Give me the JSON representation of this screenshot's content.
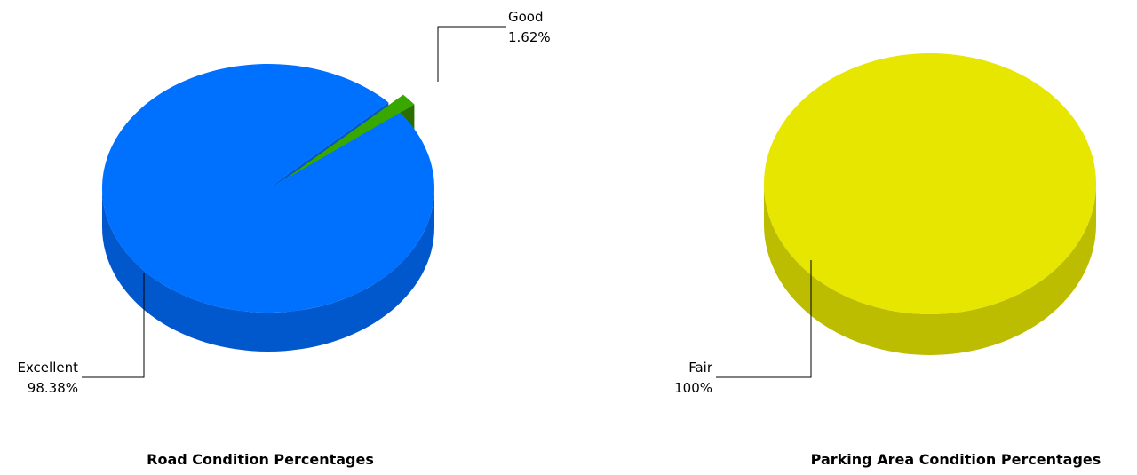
{
  "chart_data": [
    {
      "type": "pie",
      "title": "Road Condition Percentages",
      "slices": [
        {
          "label": "Excellent",
          "value": 98.38,
          "value_label": "98.38%",
          "color": "#0070ff",
          "side_color": "#0058cc"
        },
        {
          "label": "Good",
          "value": 1.62,
          "value_label": "1.62%",
          "color": "#38a800",
          "side_color": "#2a6e00"
        }
      ]
    },
    {
      "type": "pie",
      "title": "Parking Area Condition Percentages",
      "slices": [
        {
          "label": "Fair",
          "value": 100,
          "value_label": "100%",
          "color": "#e6e600",
          "side_color": "#bcbc00"
        }
      ]
    }
  ]
}
